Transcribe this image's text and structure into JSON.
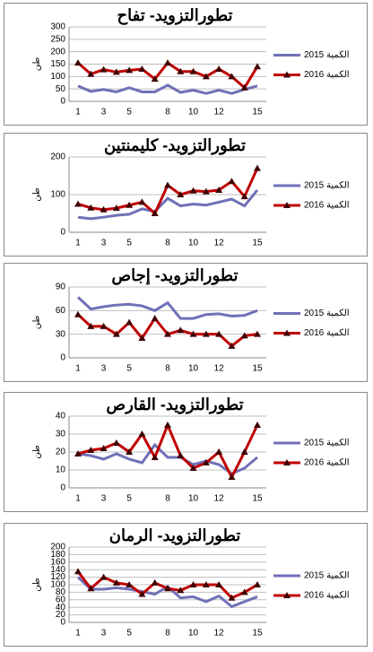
{
  "chart_data": [
    {
      "type": "line",
      "title": "تطورالتزويد- تفاح",
      "ylabel": "طن",
      "categories": [
        1,
        null,
        3,
        null,
        5,
        null,
        null,
        8,
        null,
        10,
        null,
        12,
        null,
        null,
        15
      ],
      "ylim": [
        0,
        300
      ],
      "yticks": [
        0,
        50,
        100,
        150,
        200,
        250,
        300
      ],
      "grid": true,
      "series": [
        {
          "name": "2015 الكمية",
          "color": "#7070b8",
          "values": [
            62,
            40,
            48,
            38,
            55,
            38,
            38,
            65,
            36,
            45,
            32,
            45,
            32,
            48,
            62
          ]
        },
        {
          "name": "2016 الكمية",
          "color": "#c00000",
          "values": [
            155,
            110,
            128,
            118,
            125,
            130,
            90,
            155,
            120,
            120,
            100,
            130,
            100,
            55,
            140
          ]
        }
      ]
    },
    {
      "type": "line",
      "title": "تطورالتزويد- كليمنتين",
      "ylabel": "طن",
      "categories": [
        1,
        null,
        3,
        null,
        5,
        null,
        null,
        8,
        null,
        10,
        null,
        12,
        null,
        null,
        15
      ],
      "ylim": [
        0,
        200
      ],
      "yticks": [
        0,
        100,
        200
      ],
      "grid": true,
      "series": [
        {
          "name": "2015 الكمية",
          "color": "#7070b8",
          "values": [
            40,
            36,
            40,
            45,
            48,
            62,
            55,
            90,
            70,
            75,
            72,
            80,
            88,
            70,
            112
          ]
        },
        {
          "name": "2016 الكمية",
          "color": "#c00000",
          "values": [
            75,
            65,
            60,
            64,
            72,
            80,
            50,
            125,
            100,
            110,
            108,
            112,
            135,
            95,
            170
          ]
        }
      ]
    },
    {
      "type": "line",
      "title": "تطورالتزويد- إجاص",
      "ylabel": "طن",
      "categories": [
        1,
        null,
        3,
        null,
        5,
        null,
        null,
        8,
        null,
        10,
        null,
        12,
        null,
        null,
        15
      ],
      "ylim": [
        0,
        90
      ],
      "yticks": [
        0,
        30,
        60,
        90
      ],
      "grid": true,
      "series": [
        {
          "name": "2015 الكمية",
          "color": "#7070b8",
          "values": [
            77,
            62,
            65,
            67,
            68,
            66,
            60,
            70,
            50,
            50,
            55,
            56,
            53,
            54,
            60
          ]
        },
        {
          "name": "2016 الكمية",
          "color": "#c00000",
          "values": [
            55,
            40,
            40,
            30,
            45,
            25,
            50,
            30,
            35,
            30,
            30,
            30,
            15,
            28,
            30
          ]
        }
      ]
    },
    {
      "type": "line",
      "title": "تطورالتزويد- القارص",
      "ylabel": "طن",
      "categories": [
        1,
        null,
        3,
        null,
        5,
        null,
        null,
        8,
        null,
        10,
        null,
        12,
        null,
        null,
        15
      ],
      "ylim": [
        0,
        40
      ],
      "yticks": [
        0,
        10,
        20,
        30,
        40
      ],
      "grid": true,
      "series": [
        {
          "name": "2015 الكمية",
          "color": "#7070b8",
          "values": [
            19,
            18,
            16,
            19,
            16,
            14,
            24,
            17,
            17,
            13,
            15,
            13,
            8,
            11,
            17
          ]
        },
        {
          "name": "2016 الكمية",
          "color": "#c00000",
          "values": [
            19,
            21,
            22,
            25,
            20,
            30,
            17,
            35,
            18,
            11,
            14,
            20,
            6,
            20,
            35
          ]
        }
      ]
    },
    {
      "type": "line",
      "title": "تطورالتزويد- الرمان",
      "ylabel": "طن",
      "categories": [
        1,
        null,
        3,
        null,
        5,
        null,
        null,
        8,
        null,
        10,
        null,
        12,
        null,
        null,
        15
      ],
      "ylim": [
        0,
        200
      ],
      "yticks": [
        0,
        20,
        40,
        60,
        80,
        100,
        120,
        140,
        160,
        180,
        200
      ],
      "grid": true,
      "series": [
        {
          "name": "2015 الكمية",
          "color": "#7070b8",
          "values": [
            120,
            88,
            88,
            92,
            88,
            82,
            75,
            95,
            65,
            68,
            55,
            70,
            42,
            55,
            68
          ]
        },
        {
          "name": "2016 الكمية",
          "color": "#c00000",
          "values": [
            135,
            90,
            120,
            105,
            100,
            75,
            105,
            90,
            85,
            100,
            100,
            100,
            65,
            80,
            100
          ]
        }
      ]
    }
  ]
}
